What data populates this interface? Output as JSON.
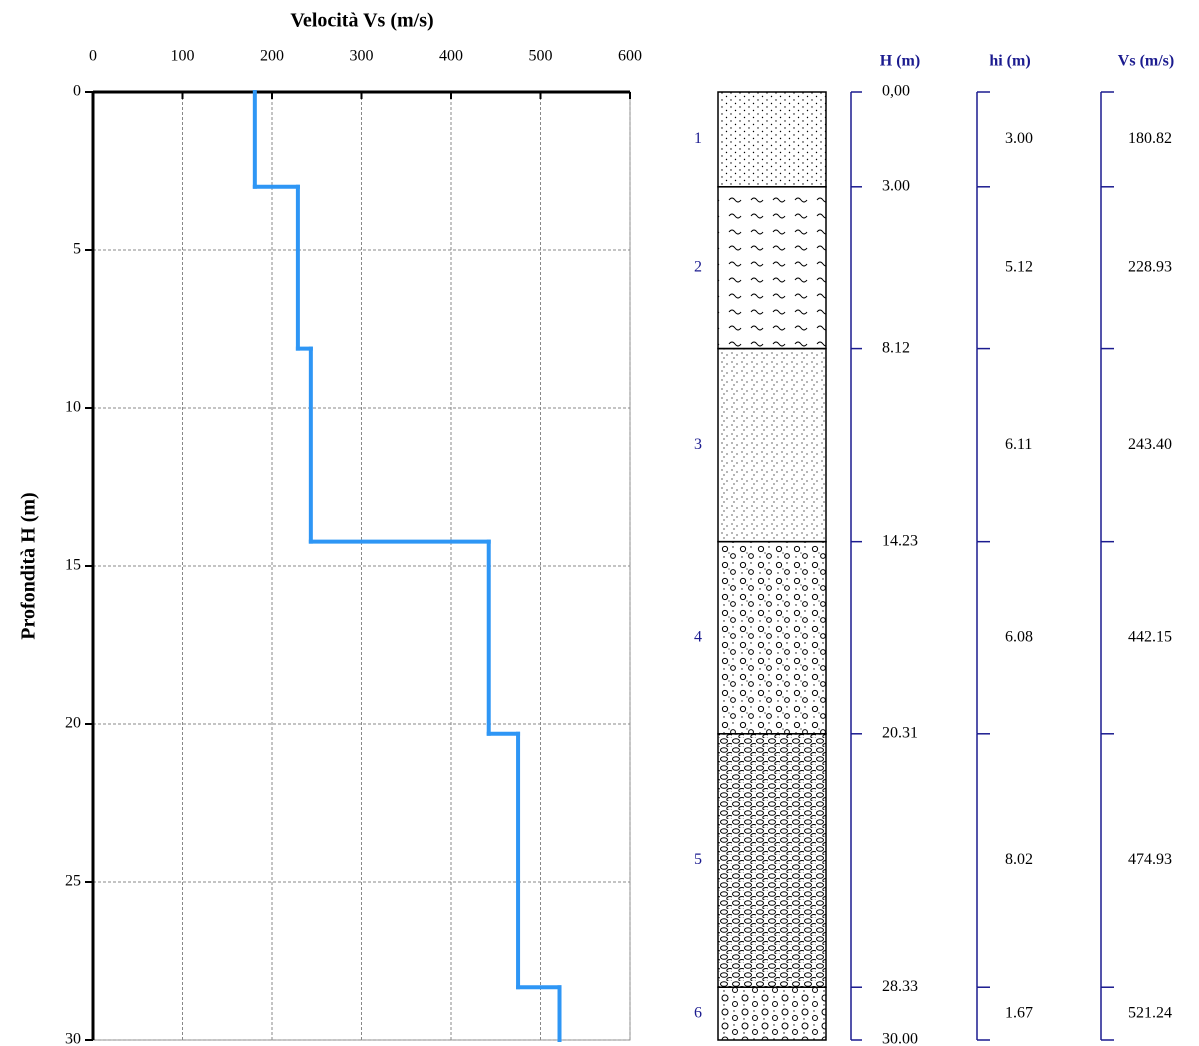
{
  "chart_data": {
    "type": "step",
    "title": "Velocità Vs (m/s)",
    "y_label": "Profondità H (m)",
    "xlim": [
      0,
      600
    ],
    "xticks": [
      0,
      100,
      200,
      300,
      400,
      500,
      600
    ],
    "ylim": [
      0,
      30
    ],
    "yticks": [
      0,
      5,
      10,
      15,
      20,
      25,
      30
    ],
    "y_inverted": true,
    "grid": true,
    "color": "#2e96f5",
    "headers": {
      "depth": "H (m)",
      "thickness": "hi (m)",
      "velocity": "Vs (m/s)"
    },
    "layers": [
      1,
      2,
      3,
      4,
      5,
      6
    ],
    "depths": [
      {
        "value": 0,
        "label": "0,00"
      },
      {
        "value": 3,
        "label": "3.00"
      },
      {
        "value": 8.12,
        "label": "8.12"
      },
      {
        "value": 14.23,
        "label": "14.23"
      },
      {
        "value": 20.31,
        "label": "20.31"
      },
      {
        "value": 28.33,
        "label": "28.33"
      },
      {
        "value": 30,
        "label": "30.00"
      }
    ],
    "thickness": {
      "values": [
        3,
        5.12,
        6.11,
        6.08,
        8.02,
        1.67
      ],
      "value_labels": [
        "3.00",
        "5.12",
        "6.11",
        "6.08",
        "8.02",
        "1.67"
      ]
    },
    "values": [
      180.82,
      228.93,
      243.4,
      442.15,
      474.93,
      521.24
    ],
    "value_labels": [
      "180.82",
      "228.93",
      "243.40",
      "442.15",
      "474.93",
      "521.24"
    ]
  }
}
